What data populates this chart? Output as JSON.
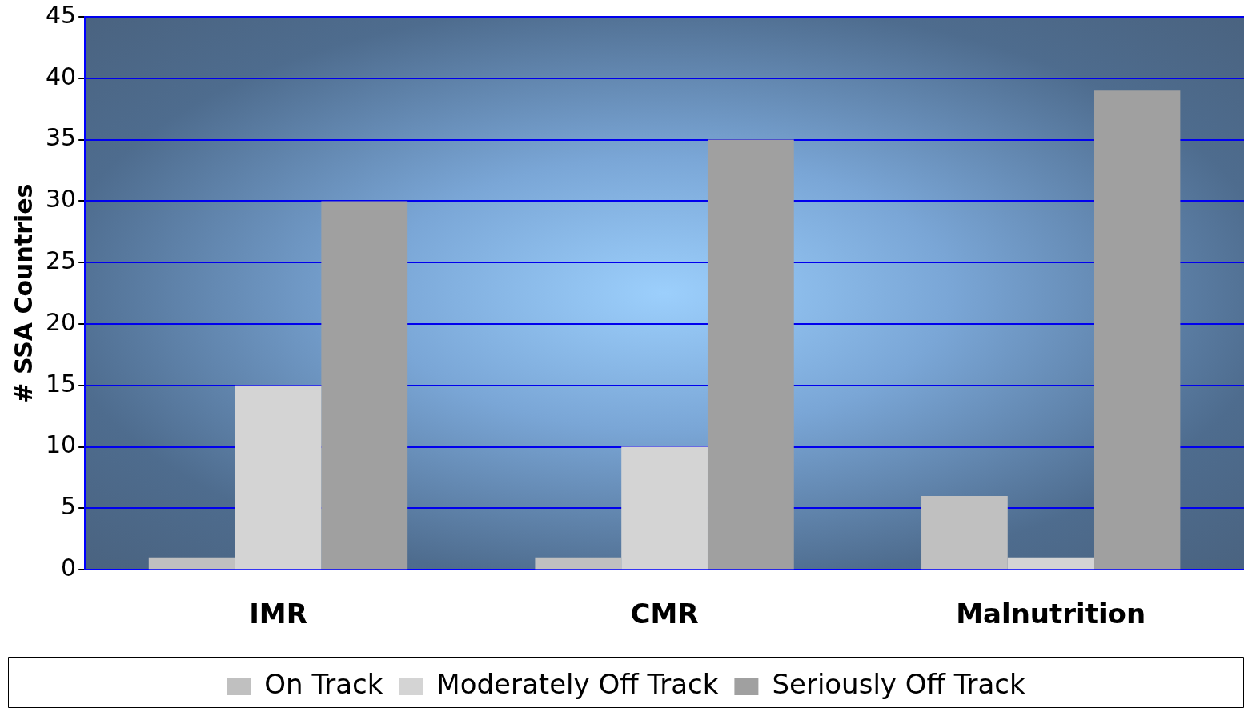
{
  "chart_data": {
    "type": "bar",
    "ylabel": "# SSA Countries",
    "categories": [
      "IMR",
      "CMR",
      "Malnutrition"
    ],
    "series": [
      {
        "name": "On Track",
        "color": "#c0c0c0",
        "values": [
          1,
          1,
          6
        ]
      },
      {
        "name": "Moderately Off Track",
        "color": "#d4d4d4",
        "values": [
          15,
          10,
          1
        ]
      },
      {
        "name": "Seriously Off Track",
        "color": "#a0a0a0",
        "values": [
          30,
          35,
          39
        ]
      }
    ],
    "ylim": [
      0,
      45
    ],
    "yticks": [
      0,
      5,
      10,
      15,
      20,
      25,
      30,
      35,
      40,
      45
    ],
    "grid": "y",
    "legend": "bottom"
  }
}
